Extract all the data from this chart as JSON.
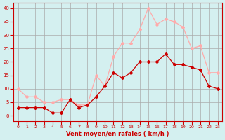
{
  "hours": [
    0,
    1,
    2,
    3,
    4,
    5,
    6,
    7,
    8,
    9,
    10,
    11,
    12,
    13,
    14,
    15,
    16,
    17,
    18,
    19,
    20,
    21,
    22,
    23
  ],
  "wind_avg": [
    3,
    3,
    3,
    3,
    1,
    1,
    6,
    3,
    4,
    7,
    11,
    16,
    14,
    16,
    20,
    20,
    20,
    23,
    19,
    19,
    18,
    17,
    11,
    10
  ],
  "wind_gust": [
    10,
    7,
    7,
    5,
    5,
    6,
    6,
    4,
    4,
    15,
    11,
    22,
    27,
    27,
    32,
    40,
    34,
    36,
    35,
    33,
    25,
    26,
    16,
    16
  ],
  "avg_color": "#cc0000",
  "gust_color": "#ffaaaa",
  "bg_color": "#d4f0f0",
  "grid_color": "#aaaaaa",
  "xlabel": "Vent moyen/en rafales ( km/h )",
  "xlabel_color": "#cc0000",
  "ylabel_ticks": [
    0,
    5,
    10,
    15,
    20,
    25,
    30,
    35,
    40
  ],
  "ylim": [
    -2,
    42
  ],
  "xlim": [
    -0.5,
    23.5
  ]
}
